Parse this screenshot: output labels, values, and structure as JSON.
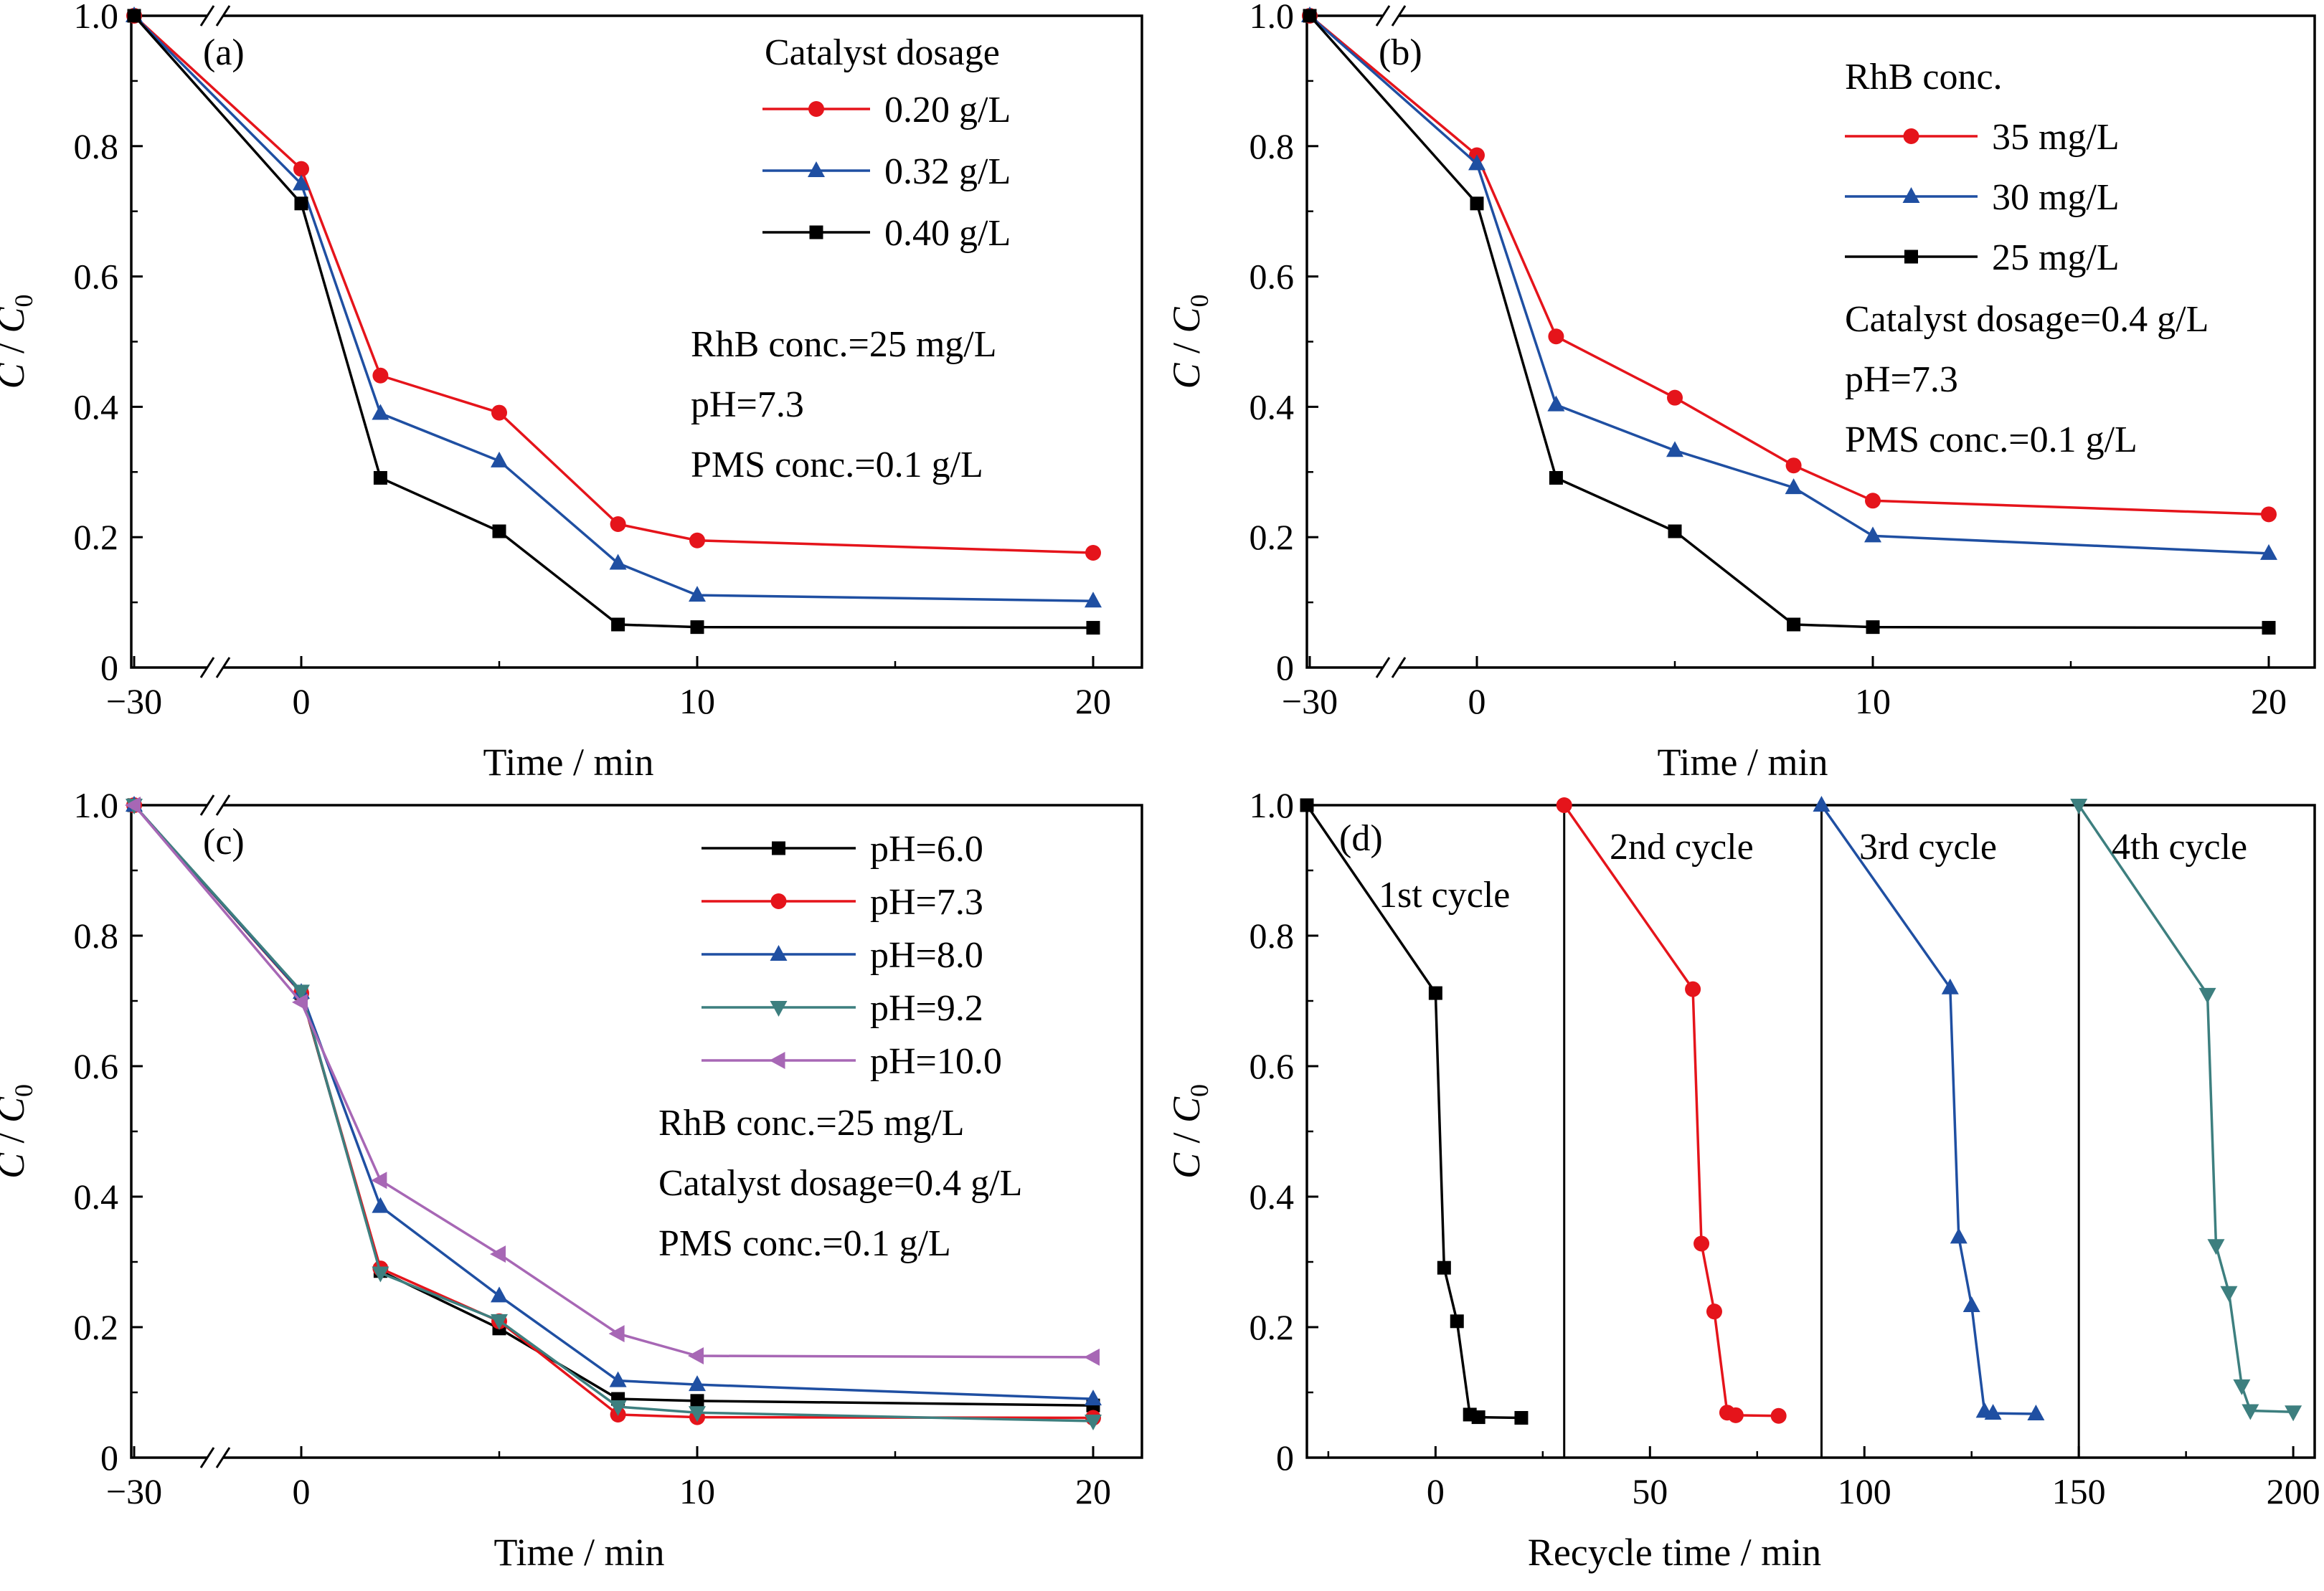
{
  "colors": {
    "black": "#000000",
    "red": "#e5141b",
    "blue": "#1f4fa2",
    "teal": "#3d7f7f",
    "purple": "#a767b5"
  },
  "chart_data": [
    {
      "panel_label": "(a)",
      "type": "line",
      "xlabel": "Time / min",
      "ylabel": "C / C0",
      "xlim": [
        -30,
        21
      ],
      "ylim": [
        0,
        1.0
      ],
      "axis_break": true,
      "x": [
        -30,
        0,
        2,
        5,
        8,
        10,
        20
      ],
      "xticks": [
        "−30",
        "0",
        "10",
        "20"
      ],
      "yticks": [
        "0",
        "0.2",
        "0.4",
        "0.6",
        "0.8",
        "1.0"
      ],
      "legend_title": "Catalyst dosage",
      "legend_position": "top-right",
      "series": [
        {
          "name": "0.20 g/L",
          "color": "red",
          "marker": "circle",
          "values": [
            1.0,
            0.765,
            0.448,
            0.391,
            0.22,
            0.195,
            0.176
          ]
        },
        {
          "name": "0.32 g/L",
          "color": "blue",
          "marker": "triangle-up",
          "values": [
            1.0,
            0.742,
            0.39,
            0.317,
            0.16,
            0.111,
            0.102
          ]
        },
        {
          "name": "0.40 g/L",
          "color": "black",
          "marker": "square",
          "values": [
            1.0,
            0.712,
            0.291,
            0.209,
            0.066,
            0.062,
            0.061
          ]
        }
      ],
      "annotations": [
        "RhB conc.=25 mg/L",
        "pH=7.3",
        "PMS conc.=0.1 g/L"
      ]
    },
    {
      "panel_label": "(b)",
      "type": "line",
      "xlabel": "Time / min",
      "ylabel": "C / C0",
      "xlim": [
        -30,
        21
      ],
      "ylim": [
        0,
        1.0
      ],
      "axis_break": true,
      "x": [
        -30,
        0,
        2,
        5,
        8,
        10,
        20
      ],
      "xticks": [
        "−30",
        "0",
        "10",
        "20"
      ],
      "yticks": [
        "0",
        "0.2",
        "0.4",
        "0.6",
        "0.8",
        "1.0"
      ],
      "legend_title": "RhB conc.",
      "legend_position": "top-right",
      "series": [
        {
          "name": "35 mg/L",
          "color": "red",
          "marker": "circle",
          "values": [
            1.0,
            0.786,
            0.508,
            0.414,
            0.31,
            0.256,
            0.235
          ]
        },
        {
          "name": "30 mg/L",
          "color": "blue",
          "marker": "triangle-up",
          "values": [
            1.0,
            0.773,
            0.403,
            0.333,
            0.276,
            0.202,
            0.175
          ]
        },
        {
          "name": "25 mg/L",
          "color": "black",
          "marker": "square",
          "values": [
            1.0,
            0.712,
            0.291,
            0.209,
            0.066,
            0.062,
            0.061
          ]
        }
      ],
      "annotations": [
        "Catalyst dosage=0.4 g/L",
        "pH=7.3",
        "PMS conc.=0.1 g/L"
      ]
    },
    {
      "panel_label": "(c)",
      "type": "line",
      "xlabel": "Time / min",
      "ylabel": "C / C0",
      "xlim": [
        -30,
        21
      ],
      "ylim": [
        0,
        1.0
      ],
      "axis_break": true,
      "x": [
        -30,
        0,
        2,
        5,
        8,
        10,
        20
      ],
      "xticks": [
        "−30",
        "0",
        "10",
        "20"
      ],
      "yticks": [
        "0",
        "0.2",
        "0.4",
        "0.6",
        "0.8",
        "1.0"
      ],
      "legend_position": "top-right",
      "series": [
        {
          "name": "pH=6.0",
          "color": "black",
          "marker": "square",
          "values": [
            1.0,
            0.712,
            0.286,
            0.198,
            0.09,
            0.087,
            0.08
          ]
        },
        {
          "name": "pH=7.3",
          "color": "red",
          "marker": "circle",
          "values": [
            1.0,
            0.712,
            0.29,
            0.209,
            0.066,
            0.062,
            0.061
          ]
        },
        {
          "name": "pH=8.0",
          "color": "blue",
          "marker": "triangle-up",
          "values": [
            1.0,
            0.713,
            0.385,
            0.248,
            0.118,
            0.112,
            0.09
          ]
        },
        {
          "name": "pH=9.2",
          "color": "teal",
          "marker": "triangle-down",
          "values": [
            1.0,
            0.715,
            0.283,
            0.21,
            0.078,
            0.069,
            0.056
          ]
        },
        {
          "name": "pH=10.0",
          "color": "purple",
          "marker": "triangle-left",
          "values": [
            1.0,
            0.698,
            0.425,
            0.312,
            0.19,
            0.156,
            0.154
          ]
        }
      ],
      "annotations": [
        "RhB conc.=25 mg/L",
        "Catalyst dosage=0.4 g/L",
        "PMS conc.=0.1 g/L"
      ]
    },
    {
      "panel_label": "(d)",
      "type": "line",
      "xlabel": "Recycle time / min",
      "ylabel": "C / C0",
      "xlim": [
        -30,
        205
      ],
      "ylim": [
        0,
        1.0
      ],
      "xticks": [
        0,
        50,
        100,
        150,
        200
      ],
      "yticks": [
        "0",
        "0.2",
        "0.4",
        "0.6",
        "0.8",
        "1.0"
      ],
      "cycle_dividers": [
        30,
        90,
        150
      ],
      "series": [
        {
          "name": "1st cycle",
          "color": "black",
          "marker": "square",
          "x": [
            -30,
            0,
            2,
            5,
            8,
            10,
            20
          ],
          "values": [
            1.0,
            0.712,
            0.291,
            0.209,
            0.066,
            0.062,
            0.061
          ]
        },
        {
          "name": "2nd cycle",
          "color": "red",
          "marker": "circle",
          "x": [
            30,
            60,
            62,
            65,
            68,
            70,
            80
          ],
          "values": [
            1.0,
            0.718,
            0.328,
            0.224,
            0.069,
            0.065,
            0.064
          ]
        },
        {
          "name": "3rd cycle",
          "color": "blue",
          "marker": "triangle-up",
          "x": [
            90,
            120,
            122,
            125,
            128,
            130,
            140
          ],
          "values": [
            1.0,
            0.72,
            0.338,
            0.233,
            0.071,
            0.068,
            0.067
          ]
        },
        {
          "name": "4th cycle",
          "color": "teal",
          "marker": "triangle-down",
          "x": [
            150,
            180,
            182,
            185,
            188,
            190,
            200
          ],
          "values": [
            1.0,
            0.71,
            0.325,
            0.253,
            0.11,
            0.072,
            0.07
          ]
        }
      ]
    }
  ]
}
